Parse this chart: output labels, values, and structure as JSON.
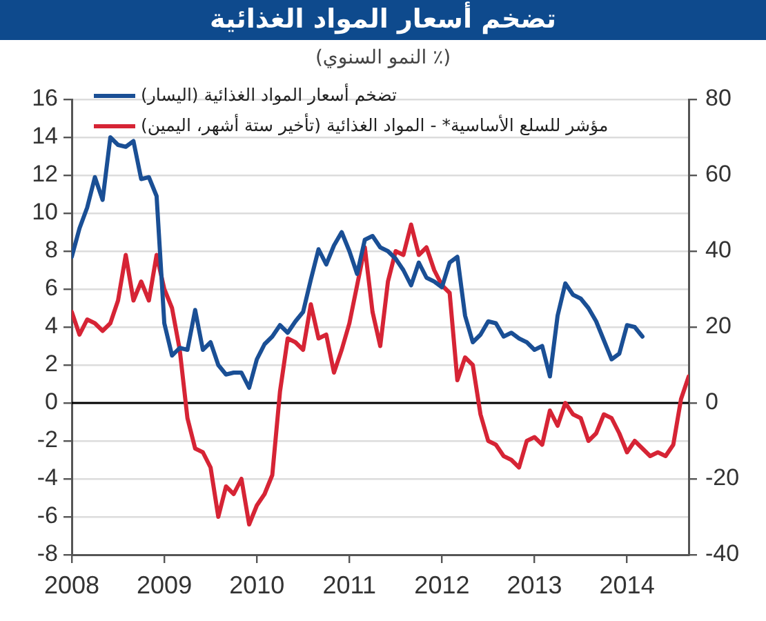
{
  "chart_data": {
    "type": "line",
    "title": "تضخم أسعار المواد الغذائية",
    "subtitle": "(٪ النمو السنوي)",
    "xlim": [
      "2008-01",
      "2014-09"
    ],
    "xticks": [
      "2008",
      "2009",
      "2010",
      "2011",
      "2012",
      "2013",
      "2014"
    ],
    "ylim": [
      -8,
      16
    ],
    "yticks": [
      -8,
      -6,
      -4,
      -2,
      0,
      2,
      4,
      6,
      8,
      10,
      12,
      14,
      16
    ],
    "y2lim": [
      -40,
      80
    ],
    "y2ticks": [
      -40,
      -20,
      0,
      20,
      40,
      60,
      80
    ],
    "grid": "y",
    "legend": "top left",
    "marker": "none",
    "line_style": "solid",
    "ref_lines": [
      {
        "axis": "y",
        "value": 0,
        "color": "#000000"
      }
    ],
    "series": [
      {
        "name": "تضخم أسعار المواد الغذائية (اليسار)",
        "color": "#1a4f95",
        "x": [
          "2008-01",
          "2008-02",
          "2008-03",
          "2008-04",
          "2008-05",
          "2008-06",
          "2008-07",
          "2008-08",
          "2008-09",
          "2008-10",
          "2008-11",
          "2008-12",
          "2009-01",
          "2009-02",
          "2009-03",
          "2009-04",
          "2009-05",
          "2009-06",
          "2009-07",
          "2009-08",
          "2009-09",
          "2009-10",
          "2009-11",
          "2009-12",
          "2010-01",
          "2010-02",
          "2010-03",
          "2010-04",
          "2010-05",
          "2010-06",
          "2010-07",
          "2010-08",
          "2010-09",
          "2010-10",
          "2010-11",
          "2010-12",
          "2011-01",
          "2011-02",
          "2011-03",
          "2011-04",
          "2011-05",
          "2011-06",
          "2011-07",
          "2011-08",
          "2011-09",
          "2011-10",
          "2011-11",
          "2011-12",
          "2012-01",
          "2012-02",
          "2012-03",
          "2012-04",
          "2012-05",
          "2012-06",
          "2012-07",
          "2012-08",
          "2012-09",
          "2012-10",
          "2012-11",
          "2012-12",
          "2013-01",
          "2013-02",
          "2013-03",
          "2013-04",
          "2013-05",
          "2013-06",
          "2013-07",
          "2013-08",
          "2013-09",
          "2013-10",
          "2013-11",
          "2013-12",
          "2014-01",
          "2014-02",
          "2014-03"
        ],
        "values": [
          7.7,
          9.2,
          10.3,
          11.9,
          10.7,
          14.0,
          13.6,
          13.5,
          13.8,
          11.8,
          11.9,
          10.9,
          4.2,
          2.5,
          2.9,
          2.8,
          4.9,
          2.8,
          3.2,
          2.0,
          1.5,
          1.6,
          1.6,
          0.8,
          2.3,
          3.1,
          3.5,
          4.1,
          3.7,
          4.3,
          4.8,
          6.5,
          8.1,
          7.3,
          8.3,
          9.0,
          8.0,
          6.8,
          8.6,
          8.8,
          8.2,
          8.0,
          7.6,
          7.0,
          6.2,
          7.4,
          6.6,
          6.4,
          6.1,
          7.4,
          7.7,
          4.6,
          3.2,
          3.6,
          4.3,
          4.2,
          3.5,
          3.7,
          3.4,
          3.2,
          2.8,
          3.0,
          1.4,
          4.6,
          6.3,
          5.7,
          5.5,
          5.0,
          4.3,
          3.3,
          2.3,
          2.6,
          4.1,
          4.0,
          3.5
        ]
      },
      {
        "name": "مؤشر للسلع الأساسية* - المواد الغذائية (تأخير ستة أشهر، اليمين)",
        "color": "#d62435",
        "axis": "y2",
        "x": [
          "2008-01",
          "2008-02",
          "2008-03",
          "2008-04",
          "2008-05",
          "2008-06",
          "2008-07",
          "2008-08",
          "2008-09",
          "2008-10",
          "2008-11",
          "2008-12",
          "2009-01",
          "2009-02",
          "2009-03",
          "2009-04",
          "2009-05",
          "2009-06",
          "2009-07",
          "2009-08",
          "2009-09",
          "2009-10",
          "2009-11",
          "2009-12",
          "2010-01",
          "2010-02",
          "2010-03",
          "2010-04",
          "2010-05",
          "2010-06",
          "2010-07",
          "2010-08",
          "2010-09",
          "2010-10",
          "2010-11",
          "2010-12",
          "2011-01",
          "2011-02",
          "2011-03",
          "2011-04",
          "2011-05",
          "2011-06",
          "2011-07",
          "2011-08",
          "2011-09",
          "2011-10",
          "2011-11",
          "2011-12",
          "2012-01",
          "2012-02",
          "2012-03",
          "2012-04",
          "2012-05",
          "2012-06",
          "2012-07",
          "2012-08",
          "2012-09",
          "2012-10",
          "2012-11",
          "2012-12",
          "2013-01",
          "2013-02",
          "2013-03",
          "2013-04",
          "2013-05",
          "2013-06",
          "2013-07",
          "2013-08",
          "2013-09",
          "2013-10",
          "2013-11",
          "2013-12",
          "2014-01",
          "2014-02",
          "2014-03",
          "2014-04",
          "2014-05",
          "2014-06",
          "2014-07",
          "2014-08",
          "2014-09"
        ],
        "values": [
          24,
          18,
          22,
          21,
          19,
          21,
          27,
          39,
          27,
          32,
          27,
          39,
          30,
          25,
          14,
          -4,
          -12,
          -13,
          -17,
          -30,
          -22,
          -24,
          -20,
          -32,
          -27,
          -24,
          -19,
          3,
          17,
          16,
          14,
          26,
          17,
          18,
          8,
          14,
          21,
          31,
          41,
          24,
          15,
          32,
          40,
          39,
          47,
          39,
          41,
          35,
          31,
          29,
          6,
          12,
          10,
          -3,
          -10,
          -11,
          -14,
          -15,
          -17,
          -10,
          -9,
          -11,
          -2,
          -6,
          0,
          -3,
          -4,
          -10,
          -8,
          -3,
          -4,
          -8,
          -13,
          -10,
          -12,
          -14,
          -13,
          -14,
          -11,
          1,
          7
        ]
      }
    ]
  }
}
